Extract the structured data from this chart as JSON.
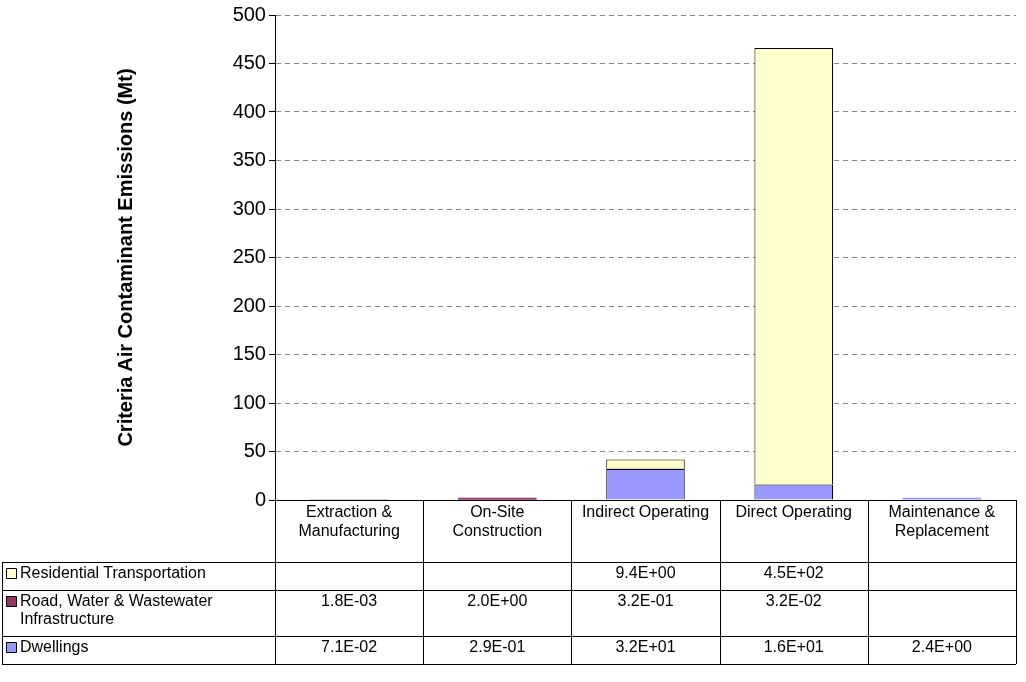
{
  "chart_data": {
    "type": "bar",
    "stacked": true,
    "ylabel": "Criteria Air Contaminant Emissions (Mt)",
    "categories": [
      "Extraction & Manufacturing",
      "On-Site Construction",
      "Indirect Operating",
      "Direct Operating",
      "Maintenance & Replacement"
    ],
    "series": [
      {
        "name": "Dwellings",
        "color": "#9999ff",
        "values": [
          0.071,
          0.29,
          32,
          16,
          2.4
        ],
        "value_labels": [
          "7.1E-02",
          "2.9E-01",
          "3.2E+01",
          "1.6E+01",
          "2.4E+00"
        ]
      },
      {
        "name": "Road, Water & Wastewater Infrastructure",
        "color": "#993366",
        "values": [
          0.0018,
          2.0,
          0.32,
          0.032,
          null
        ],
        "value_labels": [
          "1.8E-03",
          "2.0E+00",
          "3.2E-01",
          "3.2E-02",
          null
        ]
      },
      {
        "name": "Residential Transportation",
        "color": "#ffffcc",
        "values": [
          null,
          null,
          9.4,
          450,
          null
        ],
        "value_labels": [
          null,
          null,
          "9.4E+00",
          "4.5E+02",
          null
        ]
      }
    ],
    "ylim": [
      0,
      500
    ],
    "yticks": [
      0,
      50,
      100,
      150,
      200,
      250,
      300,
      350,
      400,
      450,
      500
    ],
    "grid": "y",
    "legend": "bottom left"
  }
}
